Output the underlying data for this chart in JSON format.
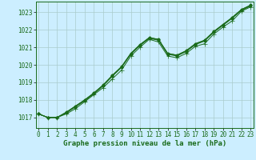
{
  "xlabel": "Graphe pression niveau de la mer (hPa)",
  "background_color": "#cceeff",
  "grid_color": "#aacccc",
  "line_color": "#1a6b1a",
  "text_color": "#1a6b1a",
  "xlim": [
    -0.3,
    23.3
  ],
  "ylim": [
    1016.4,
    1023.6
  ],
  "yticks": [
    1017,
    1018,
    1019,
    1020,
    1021,
    1022,
    1023
  ],
  "xticks": [
    0,
    1,
    2,
    3,
    4,
    5,
    6,
    7,
    8,
    9,
    10,
    11,
    12,
    13,
    14,
    15,
    16,
    17,
    18,
    19,
    20,
    21,
    22,
    23
  ],
  "line1": [
    1017.2,
    1017.0,
    1017.0,
    1017.2,
    1017.5,
    1017.9,
    1018.3,
    1018.7,
    1019.2,
    1019.7,
    1020.5,
    1021.0,
    1021.45,
    1021.3,
    1020.5,
    1020.4,
    1020.65,
    1021.05,
    1021.2,
    1021.75,
    1022.15,
    1022.5,
    1023.05,
    1023.3
  ],
  "line2": [
    1017.2,
    1017.0,
    1017.0,
    1017.25,
    1017.6,
    1017.95,
    1018.35,
    1018.8,
    1019.35,
    1019.85,
    1020.6,
    1021.1,
    1021.5,
    1021.4,
    1020.6,
    1020.5,
    1020.75,
    1021.15,
    1021.35,
    1021.85,
    1022.25,
    1022.65,
    1023.1,
    1023.35
  ],
  "line3": [
    1017.2,
    1017.0,
    1017.0,
    1017.3,
    1017.65,
    1018.0,
    1018.4,
    1018.85,
    1019.4,
    1019.9,
    1020.65,
    1021.15,
    1021.55,
    1021.45,
    1020.65,
    1020.55,
    1020.8,
    1021.2,
    1021.4,
    1021.9,
    1022.3,
    1022.7,
    1023.15,
    1023.4
  ],
  "line4": [
    1017.2,
    1017.0,
    1017.0,
    1017.3,
    1017.65,
    1018.0,
    1018.4,
    1018.85,
    1019.4,
    1019.9,
    1020.65,
    1021.15,
    1021.55,
    1021.45,
    1020.65,
    1020.55,
    1020.8,
    1021.2,
    1021.4,
    1021.9,
    1022.3,
    1022.7,
    1023.15,
    1023.4
  ],
  "xlabel_fontsize": 6.5,
  "tick_fontsize": 5.5,
  "marker_size": 2.0,
  "line_width": 0.7
}
